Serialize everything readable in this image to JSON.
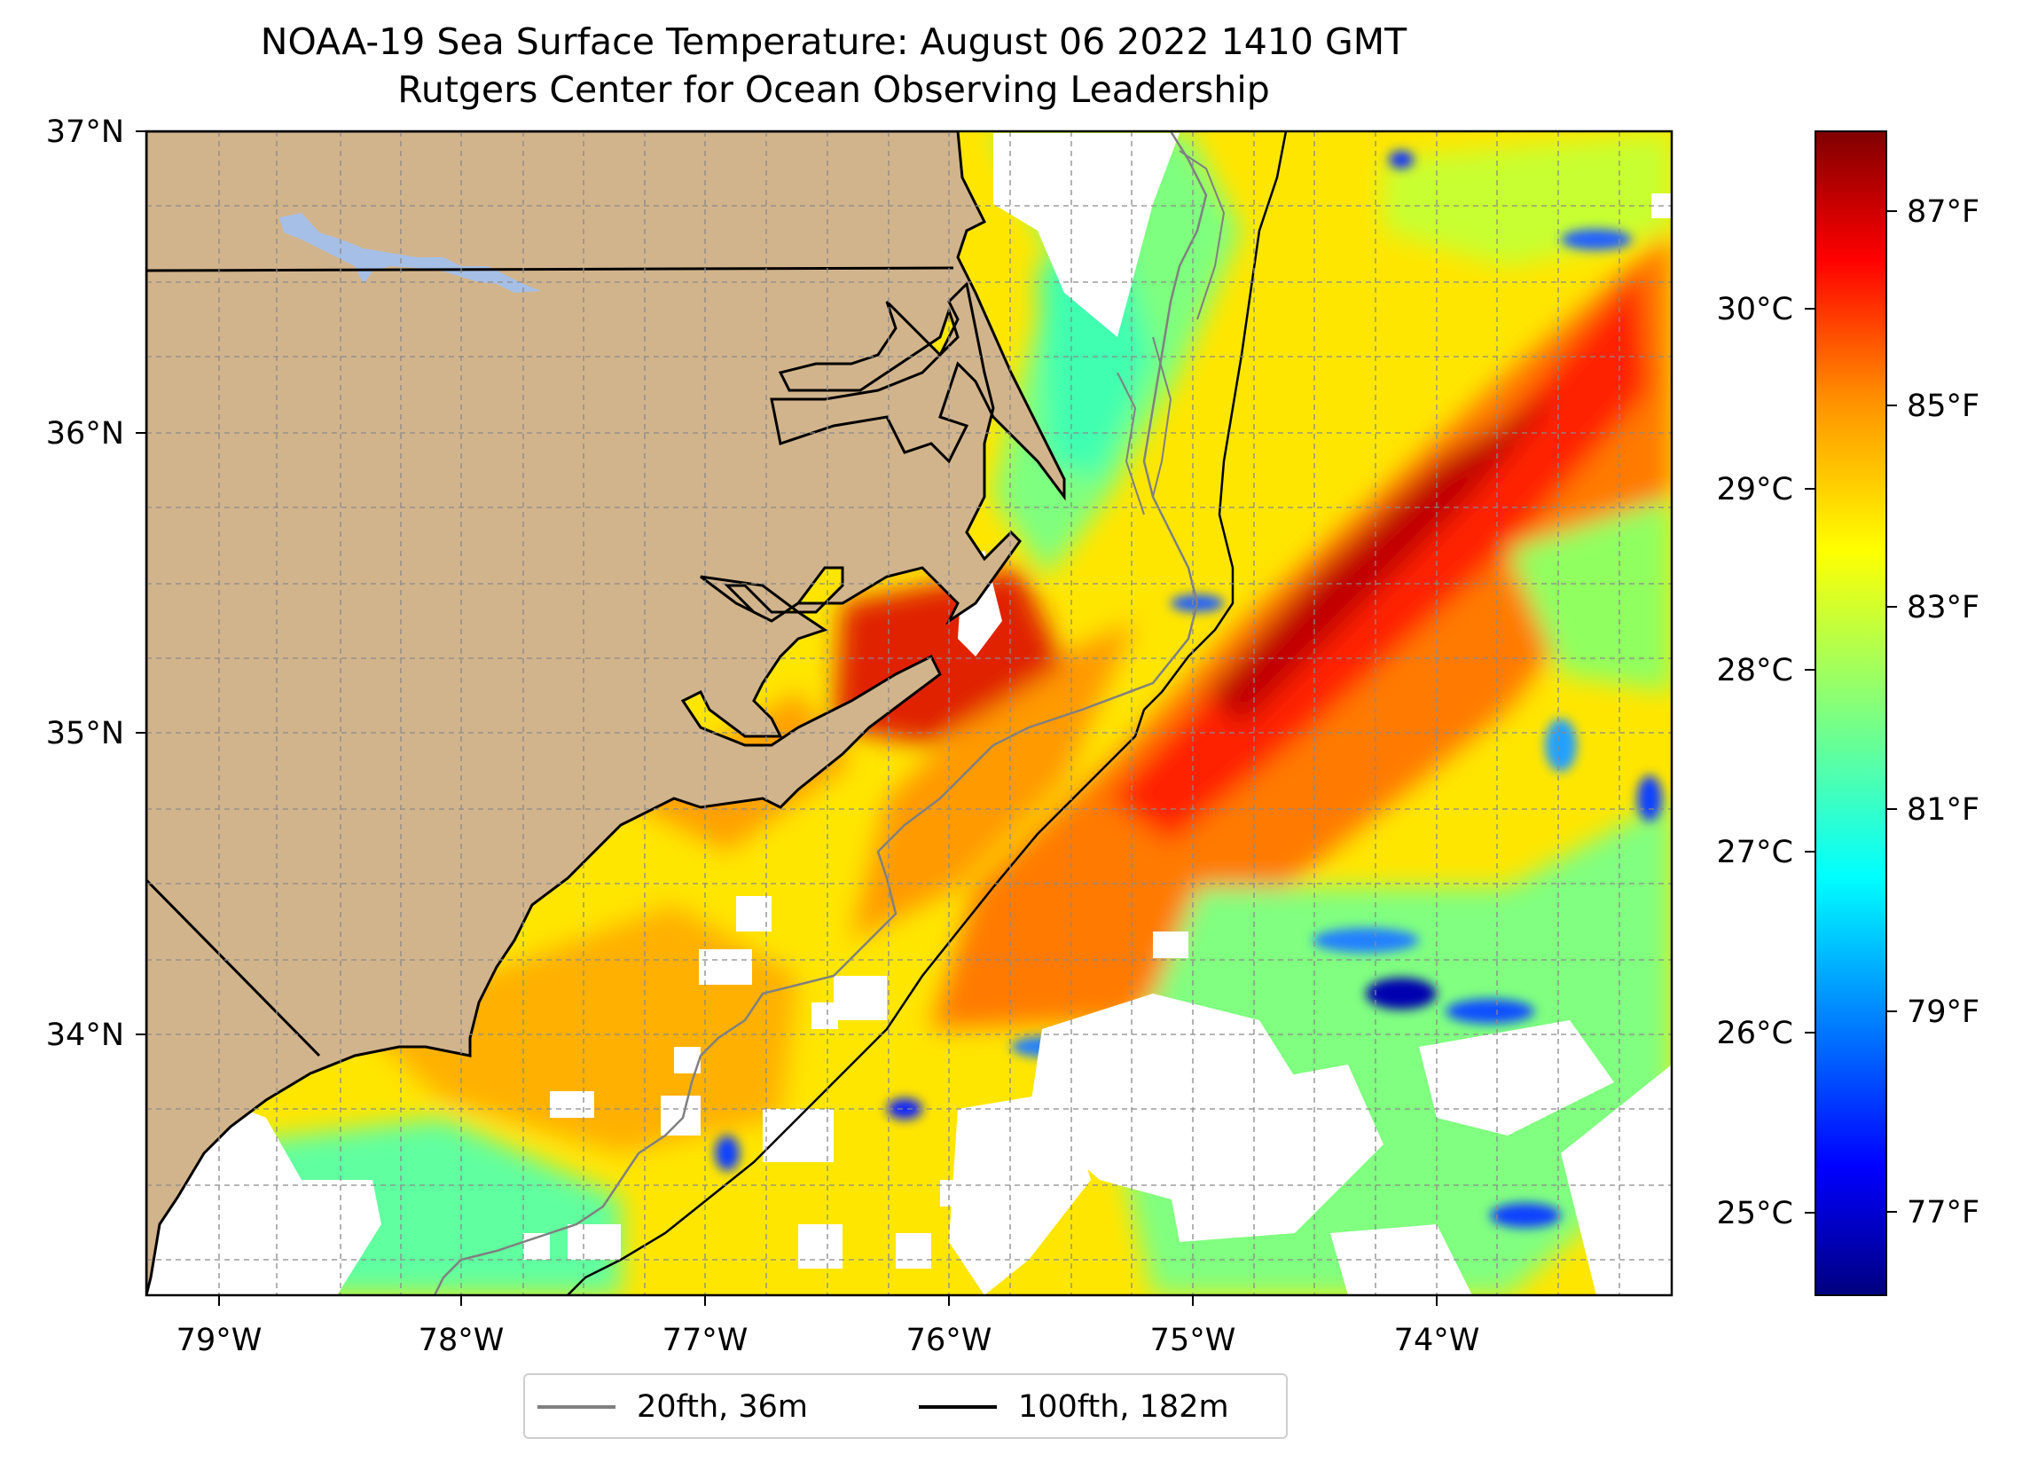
{
  "title": "NOAA-19 Sea Surface Temperature: August 06 2022 1410 GMT",
  "subtitle": "Rutgers Center for Ocean Observing Leadership",
  "map": {
    "lon_ticks": [
      "79°W",
      "78°W",
      "77°W",
      "76°W",
      "75°W",
      "74°W"
    ],
    "lat_ticks": [
      "37°N",
      "36°N",
      "35°N",
      "34°N"
    ],
    "gridlines": true,
    "land_color": "#d2b48c",
    "lake_color": "#a6bfe6",
    "ocean_missing_color": "#ffffff"
  },
  "colorbar": {
    "colormap": "jet",
    "celsius_ticks": [
      "30°C",
      "29°C",
      "28°C",
      "27°C",
      "26°C",
      "25°C"
    ],
    "fahrenheit_ticks": [
      "87°F",
      "85°F",
      "83°F",
      "81°F",
      "79°F",
      "77°F"
    ],
    "colors": [
      "#00007f",
      "#0000ff",
      "#007fff",
      "#00ffff",
      "#7fff7f",
      "#ffff00",
      "#ff7f00",
      "#ff0000",
      "#7f0000"
    ]
  },
  "legend": {
    "position": "bottom-center",
    "items": [
      {
        "label": "20fth, 36m",
        "color": "#808080"
      },
      {
        "label": "100fth, 182m",
        "color": "#000000"
      }
    ]
  }
}
